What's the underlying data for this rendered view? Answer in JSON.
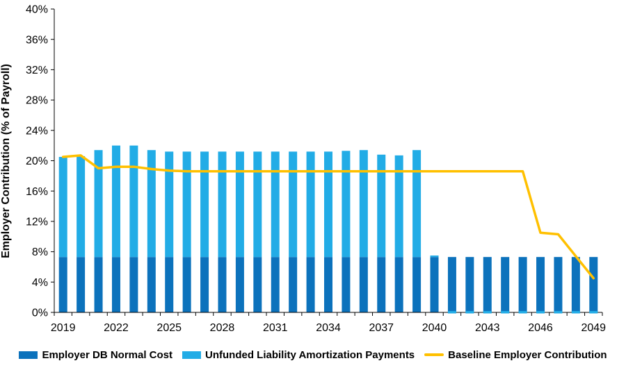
{
  "chart_data": {
    "type": "bar",
    "subtype": "stacked-bars-with-line-overlay",
    "title": "",
    "xlabel": "",
    "ylabel": "Employer Contribution (% of Payroll)",
    "ylim": [
      0,
      40
    ],
    "ytick_step": 4,
    "ytick_suffix": "%",
    "grid": "off",
    "legend_position": "bottom",
    "categories": [
      "2019",
      "2020",
      "2021",
      "2022",
      "2023",
      "2024",
      "2025",
      "2026",
      "2027",
      "2028",
      "2029",
      "2030",
      "2031",
      "2032",
      "2033",
      "2034",
      "2035",
      "2036",
      "2037",
      "2038",
      "2039",
      "2040",
      "2041",
      "2042",
      "2043",
      "2044",
      "2045",
      "2046",
      "2047",
      "2048",
      "2049"
    ],
    "x_tick_labels": [
      "2019",
      "2022",
      "2025",
      "2028",
      "2031",
      "2034",
      "2037",
      "2040",
      "2043",
      "2046",
      "2049"
    ],
    "series": [
      {
        "name": "Employer DB Normal Cost",
        "type": "bar",
        "color": "#0C72BC",
        "values": [
          7.3,
          7.3,
          7.3,
          7.3,
          7.3,
          7.3,
          7.3,
          7.3,
          7.3,
          7.3,
          7.3,
          7.3,
          7.3,
          7.3,
          7.3,
          7.3,
          7.3,
          7.3,
          7.3,
          7.3,
          7.3,
          7.3,
          7.3,
          7.3,
          7.3,
          7.3,
          7.3,
          7.3,
          7.3,
          7.3,
          7.3
        ]
      },
      {
        "name": "Unfunded Liability Amortization Payments",
        "type": "bar",
        "color": "#22ACE6",
        "values": [
          13.2,
          13.3,
          14.1,
          14.7,
          14.7,
          14.1,
          13.9,
          13.9,
          13.9,
          13.9,
          13.9,
          13.9,
          13.9,
          13.9,
          13.9,
          13.9,
          14.0,
          14.1,
          13.5,
          13.4,
          14.1,
          0.2,
          -0.1,
          -0.1,
          -0.1,
          -0.1,
          -0.1,
          -0.1,
          -0.1,
          -0.1,
          -0.1
        ]
      },
      {
        "name": "Baseline Employer Contribution",
        "type": "line",
        "color": "#FFC000",
        "values": [
          20.5,
          20.7,
          19.0,
          19.2,
          19.2,
          18.9,
          18.7,
          18.6,
          18.6,
          18.6,
          18.6,
          18.6,
          18.6,
          18.6,
          18.6,
          18.6,
          18.6,
          18.6,
          18.6,
          18.6,
          18.6,
          18.6,
          18.6,
          18.6,
          18.6,
          18.6,
          18.6,
          10.5,
          10.3,
          7.4,
          4.5
        ]
      }
    ],
    "axis_color": "#000000"
  }
}
